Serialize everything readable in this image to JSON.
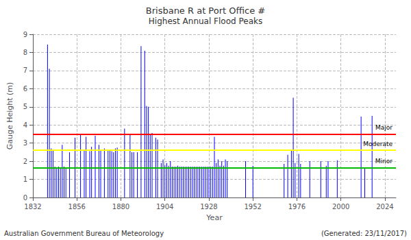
{
  "chart_data": {
    "type": "bar",
    "title": "Brisbane R at Port Office #",
    "subtitle": "Highest Annual Flood Peaks",
    "x_label": "Year",
    "y_label": "Gauge Height (m)",
    "footnotes": [
      "Australian Government Bureau of Meteorology",
      "(Generated: 23/11/2017)"
    ],
    "x": [
      1840,
      1841,
      1842,
      1843,
      1844,
      1845,
      1846,
      1847,
      1848,
      1849,
      1850,
      1852,
      1855,
      1858,
      1860,
      1861,
      1863,
      1864,
      1866,
      1868,
      1869,
      1871,
      1873,
      1874,
      1875,
      1876,
      1877,
      1878,
      1882,
      1885,
      1886,
      1887,
      1889,
      1891,
      1893,
      1894,
      1895,
      1896,
      1897,
      1899,
      1900,
      1902,
      1903,
      1904,
      1905,
      1906,
      1907,
      1908,
      1909,
      1910,
      1911,
      1912,
      1913,
      1914,
      1915,
      1916,
      1917,
      1918,
      1919,
      1920,
      1921,
      1922,
      1923,
      1924,
      1925,
      1926,
      1927,
      1928,
      1929,
      1930,
      1931,
      1932,
      1933,
      1934,
      1935,
      1936,
      1937,
      1938,
      1948,
      1952,
      1969,
      1971,
      1973,
      1974,
      1975,
      1977,
      1978,
      1983,
      1989,
      1992,
      1993,
      1998,
      2011,
      2013,
      2017
    ],
    "values": [
      8.43,
      7.1,
      2.7,
      2.6,
      1.7,
      1.65,
      1.7,
      1.65,
      2.9,
      1.7,
      1.65,
      2.5,
      3.3,
      3.5,
      2.6,
      3.35,
      2.55,
      2.8,
      3.4,
      2.9,
      2.65,
      2.7,
      2.65,
      2.6,
      2.55,
      2.5,
      2.7,
      2.75,
      3.8,
      3.5,
      2.5,
      2.5,
      2.5,
      8.35,
      8.09,
      5.05,
      5.0,
      3.5,
      3.55,
      3.3,
      3.2,
      1.9,
      2.1,
      1.8,
      1.9,
      1.75,
      2.0,
      1.7,
      1.7,
      1.7,
      1.75,
      1.7,
      1.7,
      1.7,
      1.7,
      1.7,
      1.7,
      1.7,
      1.7,
      1.7,
      1.7,
      1.7,
      1.7,
      1.7,
      1.7,
      1.7,
      1.7,
      1.7,
      1.7,
      1.7,
      3.35,
      1.9,
      2.1,
      1.75,
      2.0,
      1.75,
      2.1,
      2.0,
      2.0,
      1.75,
      1.85,
      2.35,
      2.6,
      5.5,
      1.9,
      2.4,
      1.85,
      2.0,
      2.0,
      1.75,
      2.0,
      2.05,
      4.46,
      1.65,
      4.5
    ],
    "color": "#0000ff",
    "reference_lines": [
      {
        "label": "Major",
        "value": 3.5,
        "color": "#ff0000"
      },
      {
        "label": "Moderate",
        "value": 2.6,
        "color": "#ffff00"
      },
      {
        "label": "Minor",
        "value": 1.65,
        "color": "#00bb00"
      }
    ],
    "xlim": [
      1832,
      2030
    ],
    "xticks": [
      1832,
      1856,
      1880,
      1904,
      1928,
      1952,
      1976,
      2000,
      2024
    ],
    "ylim": [
      0,
      9
    ],
    "yticks": [
      0,
      1,
      2,
      3,
      4,
      5,
      6,
      7,
      8,
      9
    ],
    "grid": true
  }
}
